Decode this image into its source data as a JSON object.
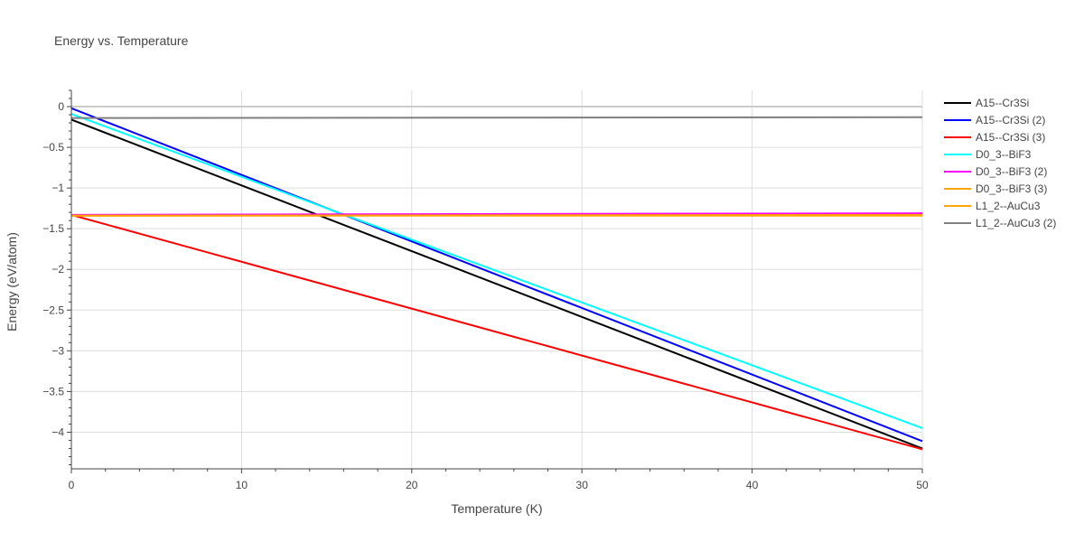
{
  "chart_data": {
    "type": "line",
    "title": "Energy vs. Temperature",
    "xlabel": "Temperature (K)",
    "ylabel": "Energy (eV/atom)",
    "xlim": [
      0,
      50
    ],
    "ylim": [
      -4.45,
      0.2
    ],
    "x_ticks": [
      0,
      10,
      20,
      30,
      40,
      50
    ],
    "x_tick_labels": [
      "0",
      "10",
      "20",
      "30",
      "40",
      "50"
    ],
    "y_ticks": [
      0,
      -0.5,
      -1,
      -1.5,
      -2,
      -2.5,
      -3,
      -3.5,
      -4
    ],
    "y_tick_labels": [
      "0",
      "−0.5",
      "−1",
      "−1.5",
      "−2",
      "−2.5",
      "−3",
      "−3.5",
      "−4"
    ],
    "grid": true,
    "legend_position": "right",
    "series": [
      {
        "name": "A15--Cr3Si",
        "color": "#000000",
        "x": [
          0,
          50
        ],
        "y": [
          -0.16,
          -4.2
        ]
      },
      {
        "name": "A15--Cr3Si (2)",
        "color": "#0000ff",
        "x": [
          0,
          50
        ],
        "y": [
          -0.02,
          -4.11
        ]
      },
      {
        "name": "A15--Cr3Si (3)",
        "color": "#ff0000",
        "x": [
          0,
          50
        ],
        "y": [
          -1.33,
          -4.21
        ]
      },
      {
        "name": "D0_3--BiF3",
        "color": "#00ffff",
        "x": [
          0,
          50
        ],
        "y": [
          -0.09,
          -3.95
        ]
      },
      {
        "name": "D0_3--BiF3 (2)",
        "color": "#ff00ff",
        "x": [
          0,
          50
        ],
        "y": [
          -1.33,
          -1.31
        ]
      },
      {
        "name": "D0_3--BiF3 (3)",
        "color": "#ffa500",
        "x": [
          0,
          50
        ],
        "y": [
          -1.34,
          -1.34
        ]
      },
      {
        "name": "L1_2--AuCu3",
        "color": "#ffa500",
        "x": [
          0,
          50
        ],
        "y": [
          -1.34,
          -1.33
        ]
      },
      {
        "name": "L1_2--AuCu3 (2)",
        "color": "#808080",
        "x": [
          0,
          50
        ],
        "y": [
          -0.14,
          -0.13
        ]
      }
    ]
  }
}
